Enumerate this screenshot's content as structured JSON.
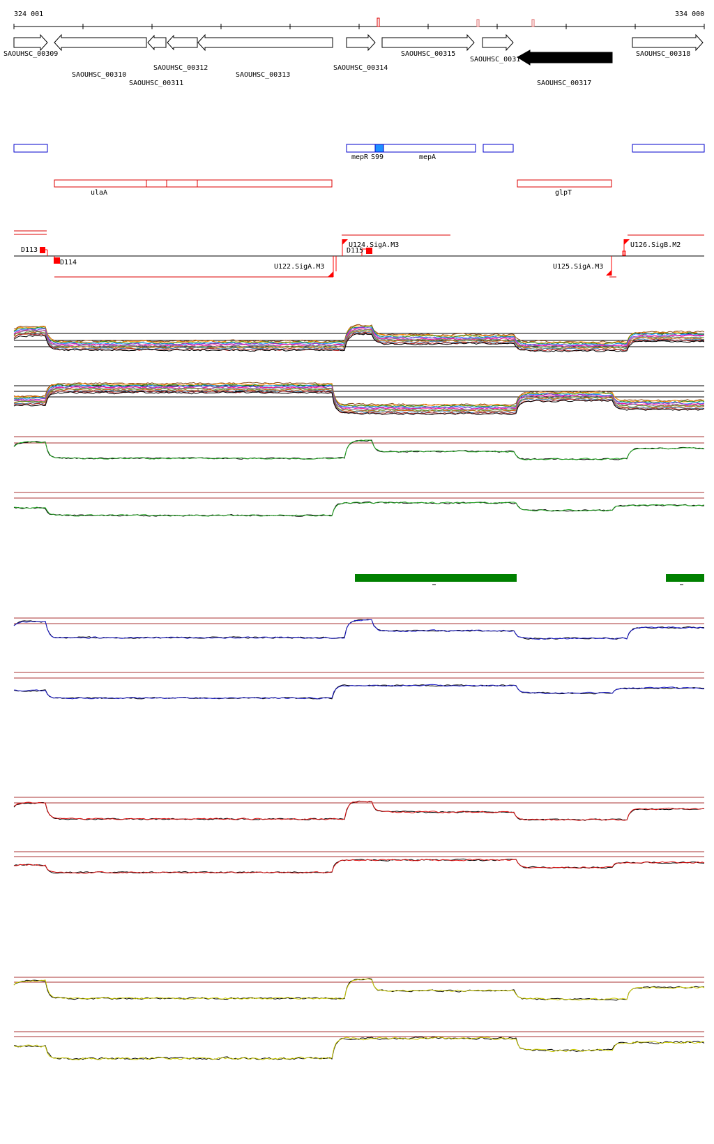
{
  "ruler": {
    "start_label": "324 001",
    "end_label": "334 000"
  },
  "genes": [
    {
      "label": "SAOUHSC_00309"
    },
    {
      "label": "SAOUHSC_00310"
    },
    {
      "label": "SAOUHSC_00311"
    },
    {
      "label": "SAOUHSC_00312"
    },
    {
      "label": "SAOUHSC_00313"
    },
    {
      "label": "SAOUHSC_00314"
    },
    {
      "label": "SAOUHSC_00315"
    },
    {
      "label": "SAOUHSC_0031"
    },
    {
      "label": "SAOUHSC_00317"
    },
    {
      "label": "SAOUHSC_00318"
    }
  ],
  "blue_features": [
    {
      "label": "mepR"
    },
    {
      "label": "S99"
    },
    {
      "label": "mepA"
    }
  ],
  "red_features": [
    {
      "label": "ulaA"
    },
    {
      "label": "glpT"
    }
  ],
  "promoters": [
    {
      "label": "D113"
    },
    {
      "label": "D114"
    },
    {
      "label": "U124.SigA.M3"
    },
    {
      "label": "D115"
    },
    {
      "label": "U122.SigA.M3"
    },
    {
      "label": "U125.SigA.M3"
    },
    {
      "label": "U126.SigB.M2"
    }
  ],
  "colors": {
    "gene_outline": "#000000",
    "gene_filled": "#000000",
    "blue_box": "#0000cc",
    "blue_highlight": "#1e90ff",
    "red_box": "#dd0000",
    "green_bar": "#008000",
    "threshold_line": "#aa3333",
    "series_green": "#22aa22",
    "series_blue": "#1a1acc",
    "series_red": "#dd1111",
    "series_yellow": "#cccc00",
    "series_black": "#000000"
  }
}
